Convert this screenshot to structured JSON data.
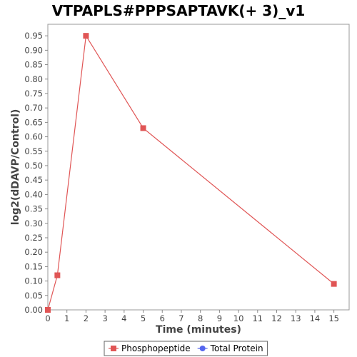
{
  "chart_data": {
    "type": "line",
    "title": "VTPAPLS#PPPSAPTAVK(+ 3)_v1",
    "xlabel": "Time (minutes)",
    "ylabel": "log2(dDAVP/Control)",
    "xlim": [
      0,
      15.8
    ],
    "ylim": [
      0,
      0.99
    ],
    "xticks": [
      "0",
      "1",
      "2",
      "3",
      "4",
      "5",
      "6",
      "7",
      "8",
      "9",
      "10",
      "11",
      "12",
      "13",
      "14",
      "15"
    ],
    "yticks": [
      "0.00",
      "0.05",
      "0.10",
      "0.15",
      "0.20",
      "0.25",
      "0.30",
      "0.35",
      "0.40",
      "0.45",
      "0.50",
      "0.55",
      "0.60",
      "0.65",
      "0.70",
      "0.75",
      "0.80",
      "0.85",
      "0.90",
      "0.95"
    ],
    "grid": false,
    "legend_position": "bottom-center",
    "series": [
      {
        "name": "Phosphopeptide",
        "color": "#e05555",
        "marker": "square",
        "x": [
          0,
          0.5,
          2,
          5,
          15
        ],
        "y": [
          0.0,
          0.12,
          0.95,
          0.63,
          0.09
        ]
      },
      {
        "name": "Total Protein",
        "color": "#5566ee",
        "marker": "circle",
        "x": [],
        "y": []
      }
    ]
  }
}
